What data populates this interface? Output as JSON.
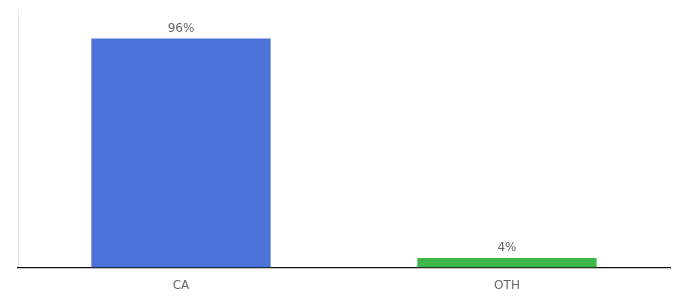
{
  "chart_data": {
    "type": "bar",
    "categories": [
      "CA",
      "OTH"
    ],
    "values": [
      96,
      4
    ],
    "colors": [
      "#4a72d9",
      "#3cb84a"
    ],
    "value_labels": [
      "96%",
      "4%"
    ],
    "data_labels": true,
    "ylim": [
      0,
      108
    ],
    "grid": false,
    "tick_labels": "x"
  }
}
